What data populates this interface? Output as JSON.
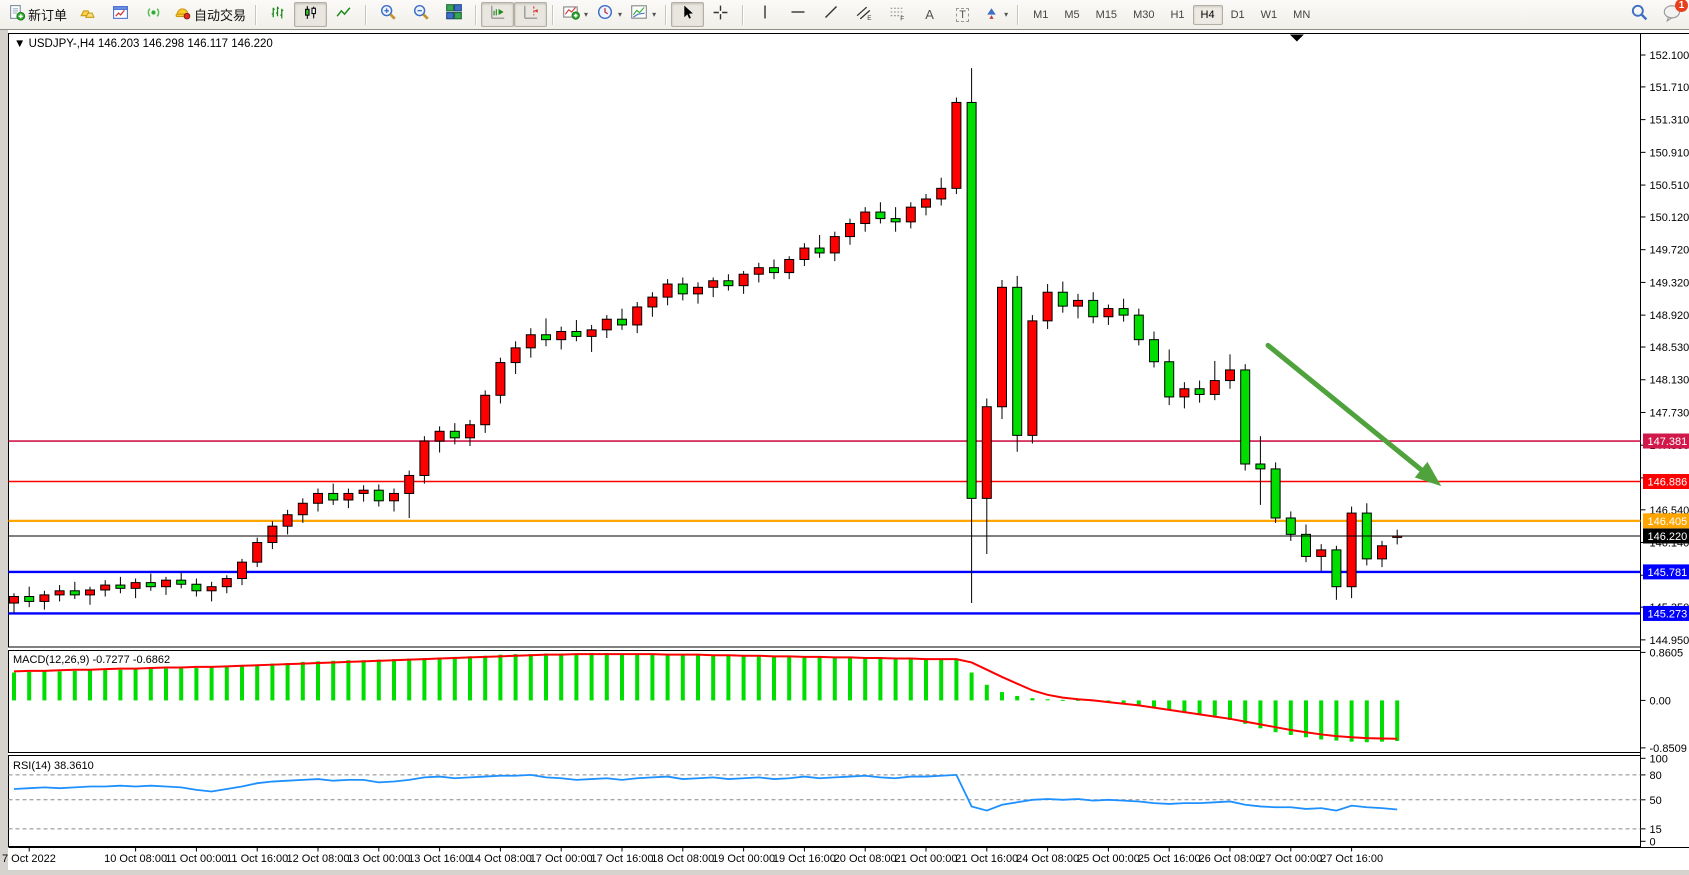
{
  "toolbar": {
    "new_order_label": "新订单",
    "auto_trading_label": "自动交易",
    "text_tool_letter": "A",
    "label_tool_letter": "T",
    "channel_sub": "E",
    "fibo_sub": "F",
    "timeframes": [
      "M1",
      "M5",
      "M15",
      "M30",
      "H1",
      "H4",
      "D1",
      "W1",
      "MN"
    ],
    "timeframe_active": "H4",
    "notification_count": "1"
  },
  "chart": {
    "symbol_title": "USDJPY-,H4",
    "ohlc_readout": "146.203 146.298 146.117 146.220",
    "macd_label": "MACD(12,26,9) -0.7277 -0.6862",
    "rsi_label": "RSI(14) 38.3610"
  },
  "colors": {
    "candle_up": "#FF0000",
    "candle_down": "#00DE00",
    "wick": "#000000",
    "macd_histogram": "#00DE00",
    "macd_signal": "#FF0000",
    "rsi_line": "#1E90FF",
    "rsi_levels": "#8a8a8a",
    "arrow": "#4FA23C",
    "axis_text": "#000000",
    "pane_border": "#000000"
  },
  "chart_data": [
    {
      "type": "candlestick",
      "title": "USDJPY-,H4",
      "symbol": "USDJPY",
      "timeframe": "H4",
      "ylim": [
        144.95,
        152.1
      ],
      "candles": [
        [
          145.4,
          145.52,
          145.28,
          145.48
        ],
        [
          145.48,
          145.6,
          145.35,
          145.42
        ],
        [
          145.42,
          145.55,
          145.32,
          145.5
        ],
        [
          145.5,
          145.62,
          145.42,
          145.55
        ],
        [
          145.55,
          145.66,
          145.45,
          145.5
        ],
        [
          145.5,
          145.6,
          145.38,
          145.56
        ],
        [
          145.56,
          145.68,
          145.48,
          145.62
        ],
        [
          145.62,
          145.72,
          145.52,
          145.58
        ],
        [
          145.58,
          145.7,
          145.46,
          145.65
        ],
        [
          145.65,
          145.76,
          145.55,
          145.6
        ],
        [
          145.6,
          145.72,
          145.5,
          145.68
        ],
        [
          145.68,
          145.78,
          145.58,
          145.63
        ],
        [
          145.63,
          145.7,
          145.48,
          145.55
        ],
        [
          145.55,
          145.66,
          145.42,
          145.6
        ],
        [
          145.6,
          145.74,
          145.52,
          145.7
        ],
        [
          145.7,
          145.94,
          145.62,
          145.9
        ],
        [
          145.9,
          146.2,
          145.84,
          146.14
        ],
        [
          146.14,
          146.4,
          146.06,
          146.34
        ],
        [
          146.34,
          146.54,
          146.24,
          146.48
        ],
        [
          146.48,
          146.68,
          146.38,
          146.62
        ],
        [
          146.62,
          146.8,
          146.52,
          146.74
        ],
        [
          146.74,
          146.86,
          146.6,
          146.66
        ],
        [
          146.66,
          146.8,
          146.56,
          146.74
        ],
        [
          146.74,
          146.84,
          146.64,
          146.78
        ],
        [
          146.78,
          146.85,
          146.58,
          146.65
        ],
        [
          146.65,
          146.8,
          146.52,
          146.74
        ],
        [
          146.74,
          147.02,
          146.44,
          146.96
        ],
        [
          146.96,
          147.44,
          146.86,
          147.38
        ],
        [
          147.38,
          147.56,
          147.24,
          147.5
        ],
        [
          147.5,
          147.6,
          147.34,
          147.42
        ],
        [
          147.42,
          147.64,
          147.32,
          147.58
        ],
        [
          147.58,
          148.0,
          147.48,
          147.94
        ],
        [
          147.94,
          148.4,
          147.84,
          148.34
        ],
        [
          148.34,
          148.6,
          148.2,
          148.52
        ],
        [
          148.52,
          148.76,
          148.4,
          148.68
        ],
        [
          148.68,
          148.88,
          148.54,
          148.62
        ],
        [
          148.62,
          148.78,
          148.5,
          148.72
        ],
        [
          148.72,
          148.86,
          148.6,
          148.66
        ],
        [
          148.66,
          148.8,
          148.47,
          148.74
        ],
        [
          148.74,
          148.92,
          148.64,
          148.87
        ],
        [
          148.87,
          149.0,
          148.74,
          148.8
        ],
        [
          148.8,
          149.08,
          148.7,
          149.02
        ],
        [
          149.02,
          149.2,
          148.9,
          149.14
        ],
        [
          149.14,
          149.36,
          149.04,
          149.3
        ],
        [
          149.3,
          149.38,
          149.1,
          149.18
        ],
        [
          149.18,
          149.32,
          149.06,
          149.26
        ],
        [
          149.26,
          149.38,
          149.14,
          149.34
        ],
        [
          149.34,
          149.42,
          149.22,
          149.28
        ],
        [
          149.28,
          149.46,
          149.18,
          149.42
        ],
        [
          149.42,
          149.56,
          149.32,
          149.5
        ],
        [
          149.5,
          149.6,
          149.36,
          149.44
        ],
        [
          149.44,
          149.64,
          149.36,
          149.6
        ],
        [
          149.6,
          149.8,
          149.52,
          149.74
        ],
        [
          149.74,
          149.9,
          149.62,
          149.68
        ],
        [
          149.68,
          149.94,
          149.58,
          149.88
        ],
        [
          149.88,
          150.1,
          149.78,
          150.04
        ],
        [
          150.04,
          150.24,
          149.94,
          150.18
        ],
        [
          150.18,
          150.3,
          150.04,
          150.1
        ],
        [
          150.1,
          150.24,
          149.94,
          150.06
        ],
        [
          150.06,
          150.3,
          149.98,
          150.24
        ],
        [
          150.24,
          150.4,
          150.14,
          150.34
        ],
        [
          150.34,
          150.6,
          150.26,
          150.47
        ],
        [
          150.47,
          151.58,
          150.4,
          151.52
        ],
        [
          151.52,
          151.94,
          145.4,
          146.68
        ],
        [
          146.68,
          147.9,
          146.0,
          147.8
        ],
        [
          147.8,
          149.35,
          147.65,
          149.26
        ],
        [
          149.26,
          149.4,
          147.25,
          147.45
        ],
        [
          147.45,
          148.92,
          147.35,
          148.85
        ],
        [
          148.85,
          149.3,
          148.75,
          149.2
        ],
        [
          149.2,
          149.33,
          148.95,
          149.03
        ],
        [
          149.03,
          149.18,
          148.88,
          149.1
        ],
        [
          149.1,
          149.2,
          148.82,
          148.9
        ],
        [
          148.9,
          149.05,
          148.8,
          149.0
        ],
        [
          149.0,
          149.12,
          148.84,
          148.92
        ],
        [
          148.92,
          149.0,
          148.55,
          148.62
        ],
        [
          148.62,
          148.72,
          148.28,
          148.35
        ],
        [
          148.35,
          148.5,
          147.82,
          147.92
        ],
        [
          147.92,
          148.1,
          147.78,
          148.02
        ],
        [
          148.02,
          148.12,
          147.85,
          147.95
        ],
        [
          147.95,
          148.36,
          147.88,
          148.12
        ],
        [
          148.12,
          148.44,
          148.02,
          148.25
        ],
        [
          148.25,
          148.32,
          147.02,
          147.1
        ],
        [
          147.1,
          147.44,
          146.6,
          147.04
        ],
        [
          147.04,
          147.12,
          146.38,
          146.44
        ],
        [
          146.44,
          146.52,
          146.16,
          146.24
        ],
        [
          146.24,
          146.36,
          145.9,
          145.97
        ],
        [
          145.97,
          146.12,
          145.79,
          146.05
        ],
        [
          146.05,
          146.1,
          145.44,
          145.6
        ],
        [
          145.6,
          146.58,
          145.46,
          146.5
        ],
        [
          146.5,
          146.62,
          145.86,
          145.94
        ],
        [
          145.94,
          146.16,
          145.84,
          146.1
        ],
        [
          146.203,
          146.298,
          146.117,
          146.22
        ]
      ],
      "y_ticks": [
        "152.100",
        "151.710",
        "151.310",
        "150.910",
        "150.510",
        "150.120",
        "149.720",
        "149.320",
        "148.920",
        "148.530",
        "148.130",
        "147.730",
        "147.330",
        "146.930",
        "146.540",
        "146.140",
        "145.740",
        "145.350",
        "144.950"
      ],
      "time_labels": [
        "7 Oct 2022",
        "10 Oct 08:00",
        "11 Oct 00:00",
        "11 Oct 16:00",
        "12 Oct 08:00",
        "13 Oct 00:00",
        "13 Oct 16:00",
        "14 Oct 08:00",
        "17 Oct 00:00",
        "17 Oct 16:00",
        "18 Oct 08:00",
        "19 Oct 00:00",
        "19 Oct 16:00",
        "20 Oct 08:00",
        "21 Oct 00:00",
        "21 Oct 16:00",
        "24 Oct 08:00",
        "25 Oct 00:00",
        "25 Oct 16:00",
        "26 Oct 08:00",
        "27 Oct 00:00",
        "27 Oct 16:00"
      ],
      "time_label_indices": [
        1,
        8,
        12,
        16,
        20,
        24,
        28,
        32,
        36,
        40,
        44,
        48,
        52,
        56,
        60,
        64,
        68,
        72,
        76,
        80,
        84,
        88
      ],
      "hlines": [
        {
          "price": 147.381,
          "label": "147.381",
          "color": "#D1184B",
          "width": 1.6
        },
        {
          "price": 146.886,
          "label": "146.886",
          "color": "#FF0000",
          "width": 1.6
        },
        {
          "price": 146.405,
          "label": "146.405",
          "color": "#FFA500",
          "width": 2.2
        },
        {
          "price": 145.781,
          "label": "145.781",
          "color": "#0000FF",
          "width": 2.4
        },
        {
          "price": 145.273,
          "label": "145.273",
          "color": "#0000FF",
          "width": 2.4
        }
      ],
      "current_price": {
        "price": 146.22,
        "label": "146.220",
        "color": "#000000"
      },
      "arrow_annotation": {
        "bar_from": 82.5,
        "price_from": 148.55,
        "bar_to": 93.9,
        "price_to": 146.83
      },
      "shift_marker_bar": 84.4
    },
    {
      "type": "bar",
      "subtype": "macd-histogram-with-signal",
      "title": "MACD(12,26,9)",
      "current_values": [
        -0.7277,
        -0.6862
      ],
      "y_ticks": [
        "0.8605",
        "0.00",
        "-0.8509"
      ],
      "ylim": [
        -0.93,
        0.93
      ],
      "histogram": [
        0.5,
        0.51,
        0.52,
        0.52,
        0.53,
        0.54,
        0.55,
        0.55,
        0.56,
        0.57,
        0.57,
        0.58,
        0.58,
        0.59,
        0.6,
        0.62,
        0.64,
        0.66,
        0.67,
        0.69,
        0.7,
        0.71,
        0.72,
        0.72,
        0.73,
        0.74,
        0.75,
        0.76,
        0.77,
        0.78,
        0.79,
        0.8,
        0.82,
        0.83,
        0.83,
        0.84,
        0.84,
        0.84,
        0.85,
        0.85,
        0.84,
        0.84,
        0.83,
        0.83,
        0.82,
        0.82,
        0.81,
        0.81,
        0.8,
        0.8,
        0.79,
        0.79,
        0.78,
        0.78,
        0.77,
        0.77,
        0.76,
        0.76,
        0.75,
        0.75,
        0.74,
        0.74,
        0.75,
        0.5,
        0.28,
        0.15,
        0.08,
        0.04,
        0.02,
        0.01,
        0.01,
        0.0,
        -0.03,
        -0.06,
        -0.1,
        -0.14,
        -0.18,
        -0.22,
        -0.26,
        -0.3,
        -0.35,
        -0.42,
        -0.5,
        -0.57,
        -0.62,
        -0.66,
        -0.7,
        -0.72,
        -0.74,
        -0.75,
        -0.74,
        -0.7277
      ],
      "signal": [
        0.52,
        0.53,
        0.53,
        0.54,
        0.55,
        0.55,
        0.56,
        0.57,
        0.57,
        0.58,
        0.59,
        0.59,
        0.6,
        0.6,
        0.61,
        0.62,
        0.63,
        0.64,
        0.65,
        0.66,
        0.67,
        0.68,
        0.69,
        0.7,
        0.71,
        0.72,
        0.73,
        0.74,
        0.75,
        0.76,
        0.77,
        0.78,
        0.79,
        0.8,
        0.81,
        0.82,
        0.82,
        0.83,
        0.83,
        0.83,
        0.83,
        0.83,
        0.83,
        0.82,
        0.82,
        0.82,
        0.81,
        0.81,
        0.8,
        0.8,
        0.79,
        0.79,
        0.78,
        0.78,
        0.77,
        0.77,
        0.76,
        0.76,
        0.75,
        0.75,
        0.74,
        0.74,
        0.74,
        0.68,
        0.55,
        0.42,
        0.3,
        0.18,
        0.1,
        0.05,
        0.02,
        0.0,
        -0.03,
        -0.06,
        -0.09,
        -0.13,
        -0.17,
        -0.21,
        -0.25,
        -0.29,
        -0.33,
        -0.38,
        -0.43,
        -0.48,
        -0.53,
        -0.57,
        -0.61,
        -0.64,
        -0.66,
        -0.675,
        -0.682,
        -0.6862
      ]
    },
    {
      "type": "line",
      "subtype": "rsi",
      "title": "RSI(14)",
      "current_value": 38.361,
      "y_ticks": [
        "100",
        "80",
        "50",
        "15",
        "0"
      ],
      "levels": [
        80,
        50,
        15
      ],
      "ylim": [
        0,
        100
      ],
      "values": [
        63,
        64,
        65,
        64,
        65,
        66,
        66,
        67,
        66,
        67,
        66,
        65,
        62,
        60,
        63,
        66,
        70,
        72,
        73,
        74,
        75,
        73,
        74,
        74,
        71,
        72,
        74,
        77,
        78,
        76,
        77,
        78,
        79,
        79,
        80,
        77,
        76,
        74,
        75,
        76,
        74,
        76,
        77,
        78,
        75,
        76,
        77,
        75,
        76,
        77,
        75,
        76,
        78,
        76,
        77,
        78,
        79,
        77,
        76,
        78,
        78,
        79,
        80,
        42,
        37,
        44,
        47,
        50,
        51,
        50,
        51,
        49,
        50,
        49,
        48,
        46,
        45,
        46,
        46,
        47,
        48,
        44,
        42,
        41,
        41,
        39,
        40,
        37,
        43,
        41,
        40,
        38.36
      ]
    }
  ]
}
